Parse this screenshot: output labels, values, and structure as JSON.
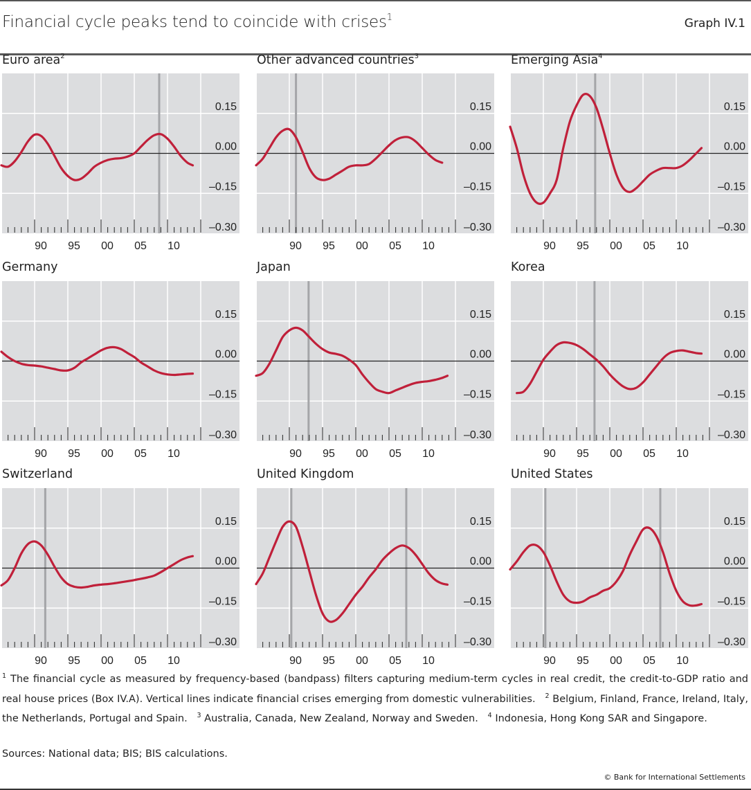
{
  "header": {
    "title": "Financial cycle peaks tend to coincide with crises",
    "title_footnote": "1",
    "graph_number": "Graph IV.1"
  },
  "footnotes": {
    "items": [
      {
        "marker": "1",
        "text": "The financial cycle as measured by frequency-based (bandpass) filters capturing medium-term cycles in real credit, the credit-to-GDP ratio and real house prices (Box IV.A). Vertical lines indicate financial crises emerging from domestic vulnerabilities."
      },
      {
        "marker": "2",
        "text": "Belgium, Finland, France, Ireland, Italy, the Netherlands, Portugal and Spain."
      },
      {
        "marker": "3",
        "text": "Australia, Canada, New Zealand, Norway and Sweden."
      },
      {
        "marker": "4",
        "text": "Indonesia, Hong Kong SAR and Singapore."
      }
    ],
    "sources": "Sources: National data; BIS; BIS calculations.",
    "copyright": "© Bank for International Settlements"
  },
  "colors": {
    "series": "#c0203a",
    "panel_background": "#dcdddf",
    "gridline": "#ffffff",
    "zero_line": "#222222",
    "crisis_line": "#a4a5a8"
  },
  "chart_data": [
    {
      "type": "line",
      "title": "Euro area",
      "title_footnote": "2",
      "xlim": [
        1985,
        2015
      ],
      "ylim": [
        -0.3,
        0.3
      ],
      "yticks": [
        "0.15",
        "0.00",
        "–0.15",
        "–0.30"
      ],
      "ytick_values": [
        0.15,
        0.0,
        -0.15,
        -0.3
      ],
      "xticks": [
        "90",
        "95",
        "00",
        "05",
        "10"
      ],
      "xtick_values": [
        1990,
        1995,
        2000,
        2005,
        2010
      ],
      "grid": true,
      "crises": [
        2008.75
      ],
      "x": [
        1985,
        1986,
        1987,
        1988,
        1989,
        1990,
        1991,
        1992,
        1993,
        1994,
        1995,
        1996,
        1997,
        1998,
        1999,
        2000,
        2001,
        2002,
        2003,
        2004,
        2005,
        2006,
        2007,
        2008,
        2009,
        2010,
        2011,
        2012,
        2013,
        2013.8
      ],
      "y": [
        -0.045,
        -0.05,
        -0.03,
        0.005,
        0.045,
        0.07,
        0.065,
        0.035,
        -0.01,
        -0.055,
        -0.085,
        -0.1,
        -0.095,
        -0.075,
        -0.05,
        -0.035,
        -0.025,
        -0.02,
        -0.018,
        -0.012,
        0.0,
        0.025,
        0.05,
        0.068,
        0.072,
        0.055,
        0.025,
        -0.01,
        -0.035,
        -0.045
      ]
    },
    {
      "type": "line",
      "title": "Other advanced countries",
      "title_footnote": "3",
      "xlim": [
        1985,
        2015
      ],
      "ylim": [
        -0.3,
        0.3
      ],
      "yticks": [
        "0.15",
        "0.00",
        "–0.15",
        "–0.30"
      ],
      "ytick_values": [
        0.15,
        0.0,
        -0.15,
        -0.3
      ],
      "xticks": [
        "90",
        "95",
        "00",
        "05",
        "10"
      ],
      "xtick_values": [
        1990,
        1995,
        2000,
        2005,
        2010
      ],
      "grid": true,
      "crises": [
        1991.0
      ],
      "x": [
        1985,
        1986,
        1987,
        1988,
        1989,
        1990,
        1991,
        1992,
        1993,
        1994,
        1995,
        1996,
        1997,
        1998,
        1999,
        2000,
        2001,
        2002,
        2003,
        2004,
        2005,
        2006,
        2007,
        2008,
        2009,
        2010,
        2011,
        2012,
        2013
      ],
      "y": [
        -0.045,
        -0.02,
        0.02,
        0.06,
        0.085,
        0.09,
        0.06,
        0.005,
        -0.055,
        -0.09,
        -0.1,
        -0.095,
        -0.08,
        -0.065,
        -0.05,
        -0.045,
        -0.045,
        -0.04,
        -0.02,
        0.005,
        0.03,
        0.05,
        0.06,
        0.06,
        0.045,
        0.02,
        -0.005,
        -0.025,
        -0.035
      ]
    },
    {
      "type": "line",
      "title": "Emerging Asia",
      "title_footnote": "4",
      "xlim": [
        1985,
        2015
      ],
      "ylim": [
        -0.3,
        0.3
      ],
      "yticks": [
        "0.15",
        "0.00",
        "–0.15",
        "–0.30"
      ],
      "ytick_values": [
        0.15,
        0.0,
        -0.15,
        -0.3
      ],
      "xticks": [
        "90",
        "95",
        "00",
        "05",
        "10"
      ],
      "xtick_values": [
        1990,
        1995,
        2000,
        2005,
        2010
      ],
      "grid": true,
      "crises": [
        1997.8
      ],
      "x": [
        1985,
        1986,
        1987,
        1988,
        1989,
        1990,
        1991,
        1992,
        1993,
        1994,
        1995,
        1996,
        1997,
        1998,
        1999,
        2000,
        2001,
        2002,
        2003,
        2004,
        2005,
        2006,
        2007,
        2008,
        2009,
        2010,
        2011,
        2012,
        2013,
        2013.8
      ],
      "y": [
        0.1,
        0.02,
        -0.08,
        -0.15,
        -0.185,
        -0.185,
        -0.15,
        -0.1,
        0.02,
        0.12,
        0.18,
        0.22,
        0.215,
        0.17,
        0.09,
        0.0,
        -0.08,
        -0.13,
        -0.145,
        -0.13,
        -0.105,
        -0.08,
        -0.065,
        -0.055,
        -0.055,
        -0.055,
        -0.045,
        -0.025,
        0.0,
        0.02
      ]
    },
    {
      "type": "line",
      "title": "Germany",
      "title_footnote": "",
      "xlim": [
        1985,
        2015
      ],
      "ylim": [
        -0.3,
        0.3
      ],
      "yticks": [
        "0.15",
        "0.00",
        "–0.15",
        "–0.30"
      ],
      "ytick_values": [
        0.15,
        0.0,
        -0.15,
        -0.3
      ],
      "xticks": [
        "90",
        "95",
        "00",
        "05",
        "10"
      ],
      "xtick_values": [
        1990,
        1995,
        2000,
        2005,
        2010
      ],
      "grid": true,
      "crises": [],
      "x": [
        1985,
        1986,
        1987,
        1988,
        1989,
        1990,
        1991,
        1992,
        1993,
        1994,
        1995,
        1996,
        1997,
        1998,
        1999,
        2000,
        2001,
        2002,
        2003,
        2004,
        2005,
        2006,
        2007,
        2008,
        2009,
        2010,
        2011,
        2012,
        2013,
        2013.8
      ],
      "y": [
        0.035,
        0.015,
        0.0,
        -0.01,
        -0.015,
        -0.017,
        -0.02,
        -0.025,
        -0.03,
        -0.035,
        -0.035,
        -0.025,
        -0.005,
        0.01,
        0.025,
        0.04,
        0.05,
        0.052,
        0.045,
        0.03,
        0.015,
        -0.005,
        -0.02,
        -0.035,
        -0.045,
        -0.05,
        -0.052,
        -0.05,
        -0.048,
        -0.047
      ]
    },
    {
      "type": "line",
      "title": "Japan",
      "title_footnote": "",
      "xlim": [
        1985,
        2015
      ],
      "ylim": [
        -0.3,
        0.3
      ],
      "yticks": [
        "0.15",
        "0.00",
        "–0.15",
        "–0.30"
      ],
      "ytick_values": [
        0.15,
        0.0,
        -0.15,
        -0.3
      ],
      "xticks": [
        "90",
        "95",
        "00",
        "05",
        "10"
      ],
      "xtick_values": [
        1990,
        1995,
        2000,
        2005,
        2010
      ],
      "grid": true,
      "crises": [
        1992.9
      ],
      "x": [
        1985,
        1986,
        1987,
        1988,
        1989,
        1990,
        1991,
        1992,
        1993,
        1994,
        1995,
        1996,
        1997,
        1998,
        1999,
        2000,
        2001,
        2002,
        2003,
        2004,
        2005,
        2006,
        2007,
        2008,
        2009,
        2010,
        2011,
        2012,
        2013,
        2013.8
      ],
      "y": [
        -0.055,
        -0.045,
        -0.01,
        0.04,
        0.09,
        0.115,
        0.125,
        0.115,
        0.09,
        0.065,
        0.045,
        0.032,
        0.027,
        0.02,
        0.005,
        -0.015,
        -0.05,
        -0.08,
        -0.105,
        -0.115,
        -0.12,
        -0.11,
        -0.1,
        -0.09,
        -0.082,
        -0.078,
        -0.075,
        -0.07,
        -0.063,
        -0.055
      ]
    },
    {
      "type": "line",
      "title": "Korea",
      "title_footnote": "",
      "xlim": [
        1985,
        2015
      ],
      "ylim": [
        -0.3,
        0.3
      ],
      "yticks": [
        "0.15",
        "0.00",
        "–0.15",
        "–0.30"
      ],
      "ytick_values": [
        0.15,
        0.0,
        -0.15,
        -0.3
      ],
      "xticks": [
        "90",
        "95",
        "00",
        "05",
        "10"
      ],
      "xtick_values": [
        1990,
        1995,
        2000,
        2005,
        2010
      ],
      "grid": true,
      "crises": [
        1997.7
      ],
      "x": [
        1986,
        1987,
        1988,
        1989,
        1990,
        1991,
        1992,
        1993,
        1994,
        1995,
        1996,
        1997,
        1998,
        1999,
        2000,
        2001,
        2002,
        2003,
        2004,
        2005,
        2006,
        2007,
        2008,
        2009,
        2010,
        2011,
        2012,
        2013,
        2013.8
      ],
      "y": [
        -0.12,
        -0.115,
        -0.085,
        -0.04,
        0.005,
        0.035,
        0.06,
        0.07,
        0.068,
        0.06,
        0.045,
        0.025,
        0.005,
        -0.02,
        -0.05,
        -0.075,
        -0.095,
        -0.105,
        -0.1,
        -0.08,
        -0.05,
        -0.02,
        0.01,
        0.03,
        0.038,
        0.04,
        0.035,
        0.03,
        0.028
      ]
    },
    {
      "type": "line",
      "title": "Switzerland",
      "title_footnote": "",
      "xlim": [
        1985,
        2015
      ],
      "ylim": [
        -0.3,
        0.3
      ],
      "yticks": [
        "0.15",
        "0.00",
        "–0.15",
        "–0.30"
      ],
      "ytick_values": [
        0.15,
        0.0,
        -0.15,
        -0.3
      ],
      "xticks": [
        "90",
        "95",
        "00",
        "05",
        "10"
      ],
      "xtick_values": [
        1990,
        1995,
        2000,
        2005,
        2010
      ],
      "grid": true,
      "crises": [
        1991.6
      ],
      "x": [
        1985,
        1986,
        1987,
        1988,
        1989,
        1990,
        1991,
        1992,
        1993,
        1994,
        1995,
        1996,
        1997,
        1998,
        1999,
        2000,
        2001,
        2002,
        2003,
        2004,
        2005,
        2006,
        2007,
        2008,
        2009,
        2010,
        2011,
        2012,
        2013,
        2013.8
      ],
      "y": [
        -0.065,
        -0.045,
        0.0,
        0.055,
        0.09,
        0.1,
        0.085,
        0.05,
        0.005,
        -0.035,
        -0.06,
        -0.07,
        -0.073,
        -0.07,
        -0.065,
        -0.062,
        -0.06,
        -0.057,
        -0.053,
        -0.049,
        -0.045,
        -0.04,
        -0.035,
        -0.028,
        -0.015,
        0.0,
        0.015,
        0.03,
        0.04,
        0.045
      ]
    },
    {
      "type": "line",
      "title": "United Kingdom",
      "title_footnote": "",
      "xlim": [
        1985,
        2015
      ],
      "ylim": [
        -0.3,
        0.3
      ],
      "yticks": [
        "0.15",
        "0.00",
        "–0.15",
        "–0.30"
      ],
      "ytick_values": [
        0.15,
        0.0,
        -0.15,
        -0.3
      ],
      "xticks": [
        "90",
        "95",
        "00",
        "05",
        "10"
      ],
      "xtick_values": [
        1990,
        1995,
        2000,
        2005,
        2010
      ],
      "grid": true,
      "crises": [
        1990.3,
        2007.6
      ],
      "x": [
        1985,
        1986,
        1987,
        1988,
        1989,
        1990,
        1991,
        1992,
        1993,
        1994,
        1995,
        1996,
        1997,
        1998,
        1999,
        2000,
        2001,
        2002,
        2003,
        2004,
        2005,
        2006,
        2007,
        2008,
        2009,
        2010,
        2011,
        2012,
        2013,
        2013.8
      ],
      "y": [
        -0.06,
        -0.02,
        0.04,
        0.1,
        0.155,
        0.175,
        0.155,
        0.08,
        -0.01,
        -0.1,
        -0.17,
        -0.2,
        -0.195,
        -0.17,
        -0.135,
        -0.1,
        -0.07,
        -0.035,
        -0.005,
        0.03,
        0.055,
        0.075,
        0.085,
        0.075,
        0.05,
        0.015,
        -0.02,
        -0.045,
        -0.058,
        -0.062
      ]
    },
    {
      "type": "line",
      "title": "United States",
      "title_footnote": "",
      "xlim": [
        1985,
        2015
      ],
      "ylim": [
        -0.3,
        0.3
      ],
      "yticks": [
        "0.15",
        "0.00",
        "–0.15",
        "–0.30"
      ],
      "ytick_values": [
        0.15,
        0.0,
        -0.15,
        -0.3
      ],
      "xticks": [
        "90",
        "95",
        "00",
        "05",
        "10"
      ],
      "xtick_values": [
        1990,
        1995,
        2000,
        2005,
        2010
      ],
      "grid": true,
      "crises": [
        1990.3,
        2007.6
      ],
      "x": [
        1985,
        1986,
        1987,
        1988,
        1989,
        1990,
        1991,
        1992,
        1993,
        1994,
        1995,
        1996,
        1997,
        1998,
        1999,
        2000,
        2001,
        2002,
        2003,
        2004,
        2005,
        2006,
        2007,
        2008,
        2009,
        2010,
        2011,
        2012,
        2013,
        2013.8
      ],
      "y": [
        -0.005,
        0.025,
        0.06,
        0.085,
        0.085,
        0.06,
        0.01,
        -0.05,
        -0.1,
        -0.125,
        -0.13,
        -0.125,
        -0.11,
        -0.1,
        -0.085,
        -0.075,
        -0.05,
        -0.01,
        0.05,
        0.1,
        0.145,
        0.15,
        0.12,
        0.06,
        -0.02,
        -0.085,
        -0.125,
        -0.14,
        -0.14,
        -0.135
      ]
    }
  ]
}
